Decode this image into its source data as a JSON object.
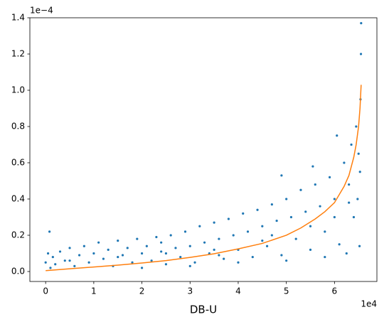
{
  "chart_data": {
    "type": "scatter",
    "xlabel": "DB-U",
    "x_offset_label": "1e4",
    "y_offset_label": "1e−4",
    "xlim": [
      -3277,
      68812
    ],
    "ylim": [
      -5.5e-06,
      0.00014
    ],
    "xticks": [
      {
        "value": 0,
        "label": "0"
      },
      {
        "value": 10000,
        "label": "1"
      },
      {
        "value": 20000,
        "label": "2"
      },
      {
        "value": 30000,
        "label": "3"
      },
      {
        "value": 40000,
        "label": "4"
      },
      {
        "value": 50000,
        "label": "5"
      },
      {
        "value": 60000,
        "label": "6"
      }
    ],
    "yticks": [
      {
        "value": 0,
        "label": "0.0"
      },
      {
        "value": 2e-05,
        "label": "0.2"
      },
      {
        "value": 4e-05,
        "label": "0.4"
      },
      {
        "value": 6e-05,
        "label": "0.6"
      },
      {
        "value": 8e-05,
        "label": "0.8"
      },
      {
        "value": 0.0001,
        "label": "1.0"
      },
      {
        "value": 0.00012,
        "label": "1.2"
      },
      {
        "value": 0.00014,
        "label": "1.4"
      }
    ],
    "series": [
      {
        "type": "scatter",
        "color": "#1f77b4",
        "x": [
          0,
          500,
          1000,
          1500,
          800,
          2000,
          3000,
          4000,
          5000,
          6000,
          7000,
          8000,
          9000,
          10000,
          11000,
          12000,
          13000,
          14000,
          15000,
          16000,
          17000,
          18000,
          19000,
          20000,
          21000,
          22000,
          23000,
          24000,
          25000,
          26000,
          27000,
          28000,
          29000,
          30000,
          31000,
          32000,
          33000,
          34000,
          35000,
          36000,
          37000,
          38000,
          39000,
          40000,
          41000,
          42000,
          43000,
          44000,
          45000,
          46000,
          47000,
          48000,
          49000,
          50000,
          51000,
          52000,
          53000,
          54000,
          55000,
          56000,
          57000,
          58000,
          59000,
          60000,
          61000,
          62000,
          63000,
          64000,
          64500,
          65000,
          65200,
          65500,
          65400,
          65535,
          65300,
          64800,
          63500,
          60500,
          55500,
          49000,
          62500,
          5000,
          15000,
          25000,
          35000,
          45000,
          55000,
          60000,
          63000,
          20000,
          30000,
          40000,
          50000,
          58000,
          24000,
          36000,
          47000
        ],
        "y": [
          5e-06,
          1e-05,
          2e-06,
          8e-06,
          2.2e-05,
          4e-06,
          1.1e-05,
          6e-06,
          1.3e-05,
          3e-06,
          9e-06,
          1.4e-05,
          5e-06,
          1e-05,
          1.6e-05,
          7e-06,
          1.2e-05,
          3e-06,
          1.7e-05,
          9e-06,
          1.3e-05,
          5e-06,
          1.8e-05,
          1e-05,
          1.4e-05,
          6e-06,
          1.9e-05,
          1.1e-05,
          4e-06,
          2e-05,
          1.3e-05,
          8e-06,
          2.2e-05,
          1.4e-05,
          5e-06,
          2.5e-05,
          1.6e-05,
          1e-05,
          2.7e-05,
          1.8e-05,
          7e-06,
          2.9e-05,
          2e-05,
          1.2e-05,
          3.2e-05,
          2.2e-05,
          8e-06,
          3.4e-05,
          2.5e-05,
          1.4e-05,
          3.7e-05,
          2.8e-05,
          9e-06,
          4e-05,
          3e-05,
          1.8e-05,
          4.5e-05,
          3.3e-05,
          1.2e-05,
          4.8e-05,
          3.6e-05,
          2.2e-05,
          5.2e-05,
          4e-05,
          1.5e-05,
          6e-05,
          4.8e-05,
          3e-05,
          8e-05,
          6.5e-05,
          1.4e-05,
          0.00012,
          9.5e-05,
          0.000137,
          5.5e-05,
          4e-05,
          7e-05,
          7.5e-05,
          5.8e-05,
          5.3e-05,
          1e-05,
          6e-06,
          8e-06,
          1e-05,
          1.2e-05,
          1.7e-05,
          2.5e-05,
          3e-05,
          3.8e-05,
          2e-06,
          3e-06,
          5e-06,
          6e-06,
          8e-06,
          1.6e-05,
          9e-06,
          2e-05
        ]
      },
      {
        "type": "line",
        "color": "#ff7f0e",
        "x": [
          0,
          5000,
          10000,
          15000,
          20000,
          25000,
          30000,
          35000,
          40000,
          45000,
          50000,
          53000,
          56000,
          58000,
          60000,
          62000,
          63000,
          64000,
          64500,
          65000,
          65300,
          65535
        ],
        "y": [
          5e-07,
          1.5e-06,
          2.5e-06,
          3.5e-06,
          4.7e-06,
          6e-06,
          7.8e-06,
          9.8e-06,
          1.25e-05,
          1.55e-05,
          2e-05,
          2.4e-05,
          2.9e-05,
          3.3e-05,
          3.8e-05,
          4.7e-05,
          5.3e-05,
          6.3e-05,
          7e-05,
          8e-05,
          9e-05,
          0.000103
        ]
      }
    ]
  }
}
